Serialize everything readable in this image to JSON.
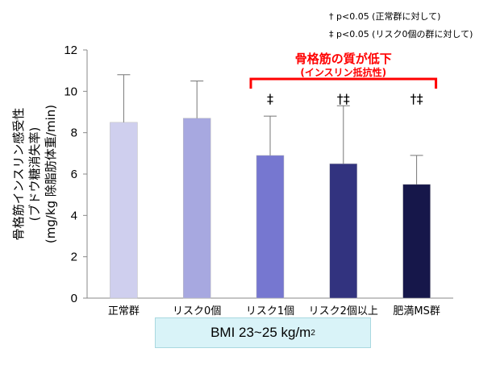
{
  "chart_data": {
    "type": "bar",
    "title": "",
    "ylabel_lines": [
      "骨格筋インスリン感受性",
      "(ブドウ糖消失率)",
      "(mg/kg  除脂肪体重/min)"
    ],
    "ylim": [
      0,
      12
    ],
    "yticks": [
      0,
      2,
      4,
      6,
      8,
      10,
      12
    ],
    "grid": false,
    "categories": [
      "正常群",
      "リスク0個",
      "リスク1個",
      "リスク2個以上",
      "肥満MS群"
    ],
    "values": [
      8.5,
      8.7,
      6.9,
      6.5,
      5.5
    ],
    "error_upper": [
      10.8,
      10.5,
      8.8,
      9.3,
      6.9
    ],
    "bar_colors": [
      "#cfcfee",
      "#a7a8e0",
      "#7677d0",
      "#32337f",
      "#16174a"
    ],
    "significance_marks": [
      "",
      "",
      "‡",
      "†‡",
      "†‡"
    ],
    "legend_lines": [
      "† p<0.05 (正常群に対して)",
      "‡  p<0.05 (リスク0個の群に対して)"
    ],
    "bracket_title": "骨格筋の質が低下",
    "bracket_subtitle": "(インスリン抵抗性)",
    "bracket_color": "#ff0000",
    "bmi_label": "BMI  23~25 kg/m",
    "bmi_sup": "2"
  }
}
